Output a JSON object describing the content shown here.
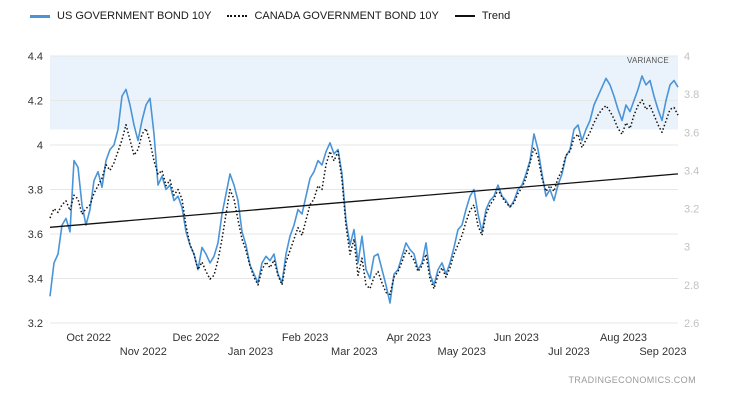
{
  "annotations": {
    "variance_label": "VARIANCE",
    "watermark": "TRADINGECONOMICS.COM"
  },
  "colors": {
    "us_line": "#4A94D8",
    "canada_line": "#111111",
    "trend_line": "#111111",
    "band": "#EAF3FB",
    "grid": "#E7E7E7"
  },
  "chart_data": {
    "type": "line",
    "title": "",
    "grid": {
      "show": true,
      "color": "#E7E7E7"
    },
    "band": {
      "axis": "left",
      "from": 4.07,
      "to": 4.4,
      "color": "#EAF3FB"
    },
    "left_axis": {
      "min": 3.2,
      "max": 4.4,
      "ticks": [
        {
          "v": 3.2,
          "label": "3.2"
        },
        {
          "v": 3.4,
          "label": "3.4"
        },
        {
          "v": 3.6,
          "label": "3.6"
        },
        {
          "v": 3.8,
          "label": "3.8"
        },
        {
          "v": 4.0,
          "label": "4"
        },
        {
          "v": 4.2,
          "label": "4.2"
        },
        {
          "v": 4.4,
          "label": "4.4"
        }
      ]
    },
    "right_axis": {
      "min": 2.6,
      "max": 4.0,
      "ticks": [
        {
          "v": 2.6,
          "label": "2.6"
        },
        {
          "v": 2.8,
          "label": "2.8"
        },
        {
          "v": 3.0,
          "label": "3"
        },
        {
          "v": 3.2,
          "label": "3.2"
        },
        {
          "v": 3.4,
          "label": "3.4"
        },
        {
          "v": 3.6,
          "label": "3.6"
        },
        {
          "v": 3.8,
          "label": "3.8"
        },
        {
          "v": 4.0,
          "label": "4"
        }
      ]
    },
    "x_axis": {
      "labels": [
        {
          "text": "Oct 2022",
          "pos": 0.0616,
          "row": 1
        },
        {
          "text": "Nov 2022",
          "pos": 0.1485,
          "row": 2
        },
        {
          "text": "Dec 2022",
          "pos": 0.2325,
          "row": 1
        },
        {
          "text": "Jan 2023",
          "pos": 0.3193,
          "row": 2
        },
        {
          "text": "Feb 2023",
          "pos": 0.4062,
          "row": 1
        },
        {
          "text": "Mar 2023",
          "pos": 0.4846,
          "row": 2
        },
        {
          "text": "Apr 2023",
          "pos": 0.5714,
          "row": 1
        },
        {
          "text": "May 2023",
          "pos": 0.6555,
          "row": 2
        },
        {
          "text": "Jun 2023",
          "pos": 0.7423,
          "row": 1
        },
        {
          "text": "Jul 2023",
          "pos": 0.8263,
          "row": 2
        },
        {
          "text": "Aug 2023",
          "pos": 0.9132,
          "row": 1
        },
        {
          "text": "Sep 2023",
          "pos": 0.976,
          "row": 2
        }
      ]
    },
    "series": [
      {
        "name": "US GOVERNMENT BOND 10Y",
        "axis": "left",
        "style": "solid",
        "color": "#4A94D8",
        "values": [
          3.32,
          3.47,
          3.51,
          3.64,
          3.67,
          3.61,
          3.93,
          3.9,
          3.73,
          3.64,
          3.71,
          3.84,
          3.88,
          3.81,
          3.93,
          3.98,
          4.0,
          4.07,
          4.22,
          4.25,
          4.18,
          4.09,
          4.02,
          4.11,
          4.18,
          4.21,
          4.05,
          3.82,
          3.86,
          3.8,
          3.82,
          3.75,
          3.77,
          3.72,
          3.61,
          3.55,
          3.51,
          3.44,
          3.54,
          3.51,
          3.47,
          3.5,
          3.56,
          3.69,
          3.78,
          3.87,
          3.82,
          3.75,
          3.61,
          3.55,
          3.46,
          3.42,
          3.38,
          3.47,
          3.5,
          3.48,
          3.51,
          3.42,
          3.38,
          3.51,
          3.59,
          3.64,
          3.71,
          3.69,
          3.77,
          3.85,
          3.88,
          3.93,
          3.91,
          3.97,
          4.01,
          3.96,
          3.98,
          3.87,
          3.66,
          3.55,
          3.62,
          3.47,
          3.59,
          3.44,
          3.4,
          3.5,
          3.51,
          3.44,
          3.37,
          3.29,
          3.42,
          3.44,
          3.5,
          3.56,
          3.53,
          3.51,
          3.44,
          3.47,
          3.56,
          3.42,
          3.37,
          3.44,
          3.47,
          3.42,
          3.47,
          3.54,
          3.62,
          3.64,
          3.71,
          3.77,
          3.8,
          3.69,
          3.61,
          3.71,
          3.75,
          3.77,
          3.82,
          3.77,
          3.75,
          3.72,
          3.75,
          3.8,
          3.82,
          3.87,
          3.93,
          4.05,
          3.98,
          3.87,
          3.77,
          3.8,
          3.75,
          3.82,
          3.87,
          3.95,
          3.98,
          4.07,
          4.09,
          4.02,
          4.07,
          4.11,
          4.18,
          4.22,
          4.26,
          4.3,
          4.27,
          4.22,
          4.16,
          4.11,
          4.18,
          4.15,
          4.2,
          4.25,
          4.31,
          4.27,
          4.29,
          4.22,
          4.16,
          4.11,
          4.2,
          4.27,
          4.29,
          4.26
        ]
      },
      {
        "name": "CANADA GOVERNMENT BOND 10Y",
        "axis": "right",
        "style": "dotted",
        "color": "#111111",
        "values": [
          3.15,
          3.2,
          3.18,
          3.22,
          3.24,
          3.19,
          3.27,
          3.25,
          3.17,
          3.2,
          3.22,
          3.28,
          3.32,
          3.36,
          3.43,
          3.4,
          3.44,
          3.5,
          3.56,
          3.64,
          3.56,
          3.48,
          3.51,
          3.59,
          3.62,
          3.55,
          3.45,
          3.38,
          3.4,
          3.32,
          3.35,
          3.27,
          3.3,
          3.25,
          3.11,
          3.01,
          2.96,
          2.88,
          2.92,
          2.87,
          2.83,
          2.85,
          2.93,
          3.04,
          3.17,
          3.3,
          3.25,
          3.14,
          3.04,
          2.98,
          2.9,
          2.84,
          2.8,
          2.88,
          2.92,
          2.89,
          2.93,
          2.85,
          2.8,
          2.92,
          2.98,
          3.04,
          3.1,
          3.06,
          3.14,
          3.22,
          3.25,
          3.32,
          3.3,
          3.43,
          3.5,
          3.45,
          3.5,
          3.35,
          3.11,
          2.96,
          3.04,
          2.85,
          2.94,
          2.8,
          2.78,
          2.84,
          2.87,
          2.81,
          2.76,
          2.75,
          2.84,
          2.87,
          2.92,
          2.98,
          2.96,
          2.93,
          2.87,
          2.9,
          2.96,
          2.83,
          2.78,
          2.85,
          2.89,
          2.84,
          2.89,
          2.96,
          3.01,
          3.06,
          3.13,
          3.19,
          3.22,
          3.11,
          3.06,
          3.17,
          3.22,
          3.25,
          3.3,
          3.26,
          3.23,
          3.21,
          3.23,
          3.28,
          3.31,
          3.36,
          3.44,
          3.52,
          3.47,
          3.36,
          3.29,
          3.32,
          3.29,
          3.36,
          3.4,
          3.48,
          3.5,
          3.57,
          3.59,
          3.52,
          3.56,
          3.6,
          3.65,
          3.69,
          3.72,
          3.74,
          3.71,
          3.67,
          3.62,
          3.59,
          3.65,
          3.62,
          3.69,
          3.74,
          3.77,
          3.72,
          3.74,
          3.69,
          3.64,
          3.6,
          3.66,
          3.72,
          3.73,
          3.69
        ]
      },
      {
        "name": "Trend",
        "axis": "left",
        "style": "solid",
        "color": "#111111",
        "trend": true,
        "values": [
          3.63,
          3.87
        ]
      }
    ]
  }
}
